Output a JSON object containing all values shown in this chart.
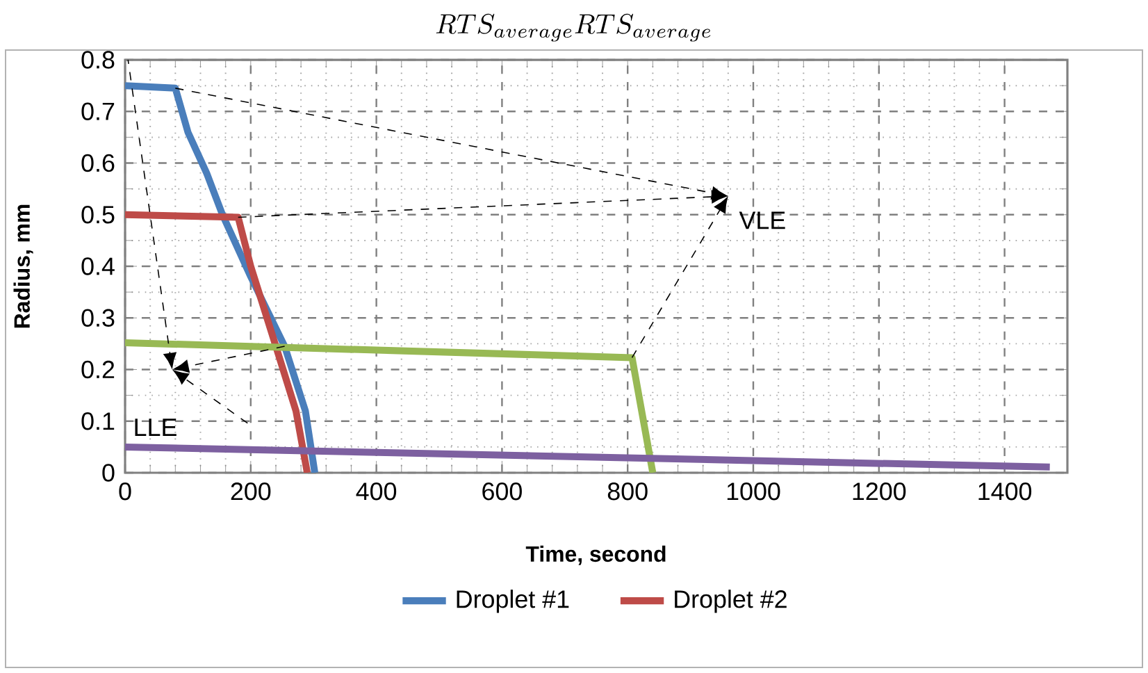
{
  "chart_data": {
    "type": "line",
    "title": "RTS_{average}RTS_{average}",
    "xlabel": "Time, second",
    "ylabel": "Radius, mm",
    "xlim": [
      0,
      1500
    ],
    "xticks": [
      0,
      200,
      400,
      600,
      800,
      1000,
      1200,
      1400
    ],
    "ylim": [
      0,
      0.8
    ],
    "yticks": [
      0,
      0.1,
      0.2,
      0.3,
      0.4,
      0.5,
      0.6,
      0.7,
      0.8
    ],
    "grid": true,
    "legend": "bottom",
    "marker": "none",
    "line_style": "solid",
    "series": [
      {
        "name": "Droplet #1",
        "color": "#4a7ebb",
        "x": [
          0,
          80,
          100,
          130,
          155,
          200,
          254,
          287,
          302
        ],
        "values": [
          0.75,
          0.745,
          0.66,
          0.58,
          0.5,
          0.38,
          0.245,
          0.12,
          0
        ]
      },
      {
        "name": "Droplet #2",
        "color": "#be4b48",
        "x": [
          0,
          180,
          200,
          240,
          272,
          290
        ],
        "values": [
          0.5,
          0.495,
          0.4,
          0.245,
          0.12,
          0
        ]
      },
      {
        "color": "#98b954",
        "x": [
          0,
          807,
          840
        ],
        "values": [
          0.252,
          0.223,
          0
        ]
      },
      {
        "color": "#7d60a0",
        "x": [
          0,
          1472
        ],
        "values": [
          0.05,
          0.011
        ]
      }
    ],
    "annotations": [
      "VLE",
      "LLE"
    ]
  }
}
